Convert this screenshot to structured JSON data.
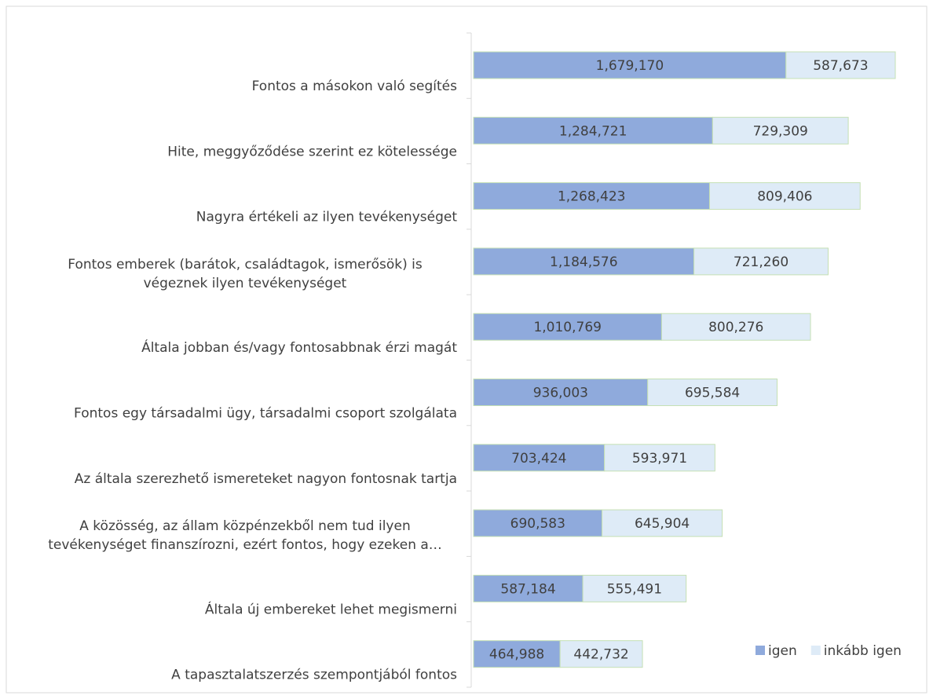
{
  "chart_data": {
    "type": "stacked-bar-horizontal",
    "categories": [
      [
        "Fontos a másokon való segítés"
      ],
      [
        "Hite, meggyőződése szerint ez kötelessége"
      ],
      [
        "Nagyra értékeli az ilyen tevékenységet"
      ],
      [
        "Fontos emberek (barátok, családtagok, ismerősök) is",
        "végeznek ilyen tevékenységet"
      ],
      [
        "Általa jobban és/vagy fontosabbnak érzi magát"
      ],
      [
        "Fontos egy társadalmi ügy, társadalmi csoport szolgálata"
      ],
      [
        "Az általa szerezhető ismereteket nagyon fontosnak tartja"
      ],
      [
        "A közösség, az állam közpénzekből nem tud ilyen",
        "tevékenységet finanszírozni, ezért fontos, hogy ezeken a…"
      ],
      [
        "Általa új embereket lehet megismerni"
      ],
      [
        "A tapasztalatszerzés szempontjából fontos"
      ]
    ],
    "series": [
      {
        "name": "igen",
        "color": "#8faadc",
        "values": [
          1679170,
          1284721,
          1268423,
          1184576,
          1010769,
          936003,
          703424,
          690583,
          587184,
          464988
        ],
        "value_labels": [
          "1,679,170",
          "1,284,721",
          "1,268,423",
          "1,184,576",
          "1,010,769",
          "936,003",
          "703,424",
          "690,583",
          "587,184",
          "464,988"
        ]
      },
      {
        "name": "inkább igen",
        "color": "#deebf7",
        "values": [
          587673,
          729309,
          809406,
          721260,
          800276,
          695584,
          593971,
          645904,
          555491,
          442732
        ],
        "value_labels": [
          "587,673",
          "729,309",
          "809,406",
          "721,260",
          "800,276",
          "695,584",
          "593,971",
          "645,904",
          "555,491",
          "442,732"
        ]
      }
    ],
    "legend": "bottom-right"
  }
}
